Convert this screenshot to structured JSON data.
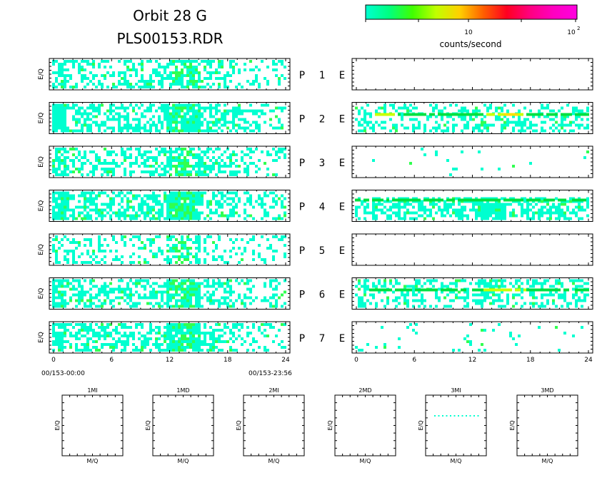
{
  "header": {
    "title_line1": "Orbit 28 G",
    "title_line2": "PLS00153.RDR"
  },
  "colorbar": {
    "label": "counts/second",
    "tick_10": "10",
    "tick_100_base": "10",
    "tick_100_exp": "2",
    "colors": [
      "#00ffd0",
      "#00ff80",
      "#40ff00",
      "#c0ff00",
      "#ffd000",
      "#ff6000",
      "#ff0020",
      "#ff0080",
      "#ff00c0",
      "#ff00e0"
    ]
  },
  "colors": {
    "cyan": "#00ffd0",
    "lightgreen": "#30ff50",
    "green": "#00e040",
    "yellowgreen": "#c8ff00",
    "yellow": "#ffe000"
  },
  "chart_data": {
    "type": "heatmap",
    "y_axis_label": "E/Q",
    "x_ticks": [
      "0",
      "6",
      "12",
      "18",
      "24"
    ],
    "x_range": [
      0,
      24
    ],
    "time_start": "00/153-00:00",
    "time_end": "00/153-23:56",
    "rows": [
      {
        "label_p": "P",
        "num": "1",
        "label_e": "E",
        "left_density": 0.42,
        "right_density": 0.0,
        "right_band": false
      },
      {
        "label_p": "P",
        "num": "2",
        "label_e": "E",
        "left_density": 0.55,
        "right_density": 0.35,
        "right_band": true
      },
      {
        "label_p": "P",
        "num": "3",
        "label_e": "E",
        "left_density": 0.45,
        "right_density": 0.02,
        "right_band": false
      },
      {
        "label_p": "P",
        "num": "4",
        "label_e": "E",
        "left_density": 0.55,
        "right_density": 0.55,
        "right_band": true
      },
      {
        "label_p": "P",
        "num": "5",
        "label_e": "E",
        "left_density": 0.3,
        "right_density": 0.0,
        "right_band": false
      },
      {
        "label_p": "P",
        "num": "6",
        "label_e": "E",
        "left_density": 0.5,
        "right_density": 0.4,
        "right_band": true
      },
      {
        "label_p": "P",
        "num": "7",
        "label_e": "E",
        "left_density": 0.5,
        "right_density": 0.05,
        "right_band": false
      }
    ],
    "small_panels": [
      {
        "title": "1MI",
        "xlabel": "M/Q",
        "ylabel": "E/Q",
        "has_data": false
      },
      {
        "title": "1MD",
        "xlabel": "M/Q",
        "ylabel": "E/Q",
        "has_data": false
      },
      {
        "title": "2MI",
        "xlabel": "M/Q",
        "ylabel": "E/Q",
        "has_data": false
      },
      {
        "title": "2MD",
        "xlabel": "M/Q",
        "ylabel": "E/Q",
        "has_data": false
      },
      {
        "title": "3MI",
        "xlabel": "M/Q",
        "ylabel": "E/Q",
        "has_data": true
      },
      {
        "title": "3MD",
        "xlabel": "M/Q",
        "ylabel": "E/Q",
        "has_data": false
      }
    ]
  }
}
